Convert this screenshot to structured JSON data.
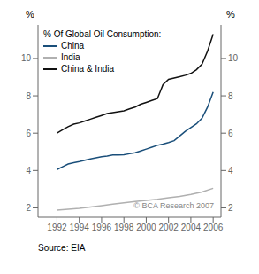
{
  "chart_data": {
    "type": "line",
    "title": "% Of Global Oil Consumption:",
    "y_label": "%",
    "y2_label": "%",
    "annotations": [
      "© BCA Research 2007",
      "Source: EIA"
    ],
    "xlim": [
      1990.3,
      2006.7
    ],
    "xticks": [
      1992,
      1994,
      1996,
      1998,
      2000,
      2002,
      2004,
      2006
    ],
    "ylim": [
      1.5,
      11.8
    ],
    "yticks": [
      2,
      4,
      6,
      8,
      10
    ],
    "y2lim": [
      1.5,
      11.8
    ],
    "y2ticks": [
      2,
      4,
      6,
      8,
      10
    ],
    "grid": false,
    "legend": "upper left",
    "series": [
      {
        "name": "China",
        "color": "#1a4f7a",
        "x": [
          1992,
          1992.5,
          1993,
          1993.5,
          1994,
          1994.5,
          1995,
          1995.5,
          1996,
          1996.5,
          1997,
          1997.5,
          1998,
          1998.5,
          1999,
          1999.5,
          2000,
          2000.5,
          2001,
          2001.5,
          2002,
          2002.5,
          2003,
          2003.5,
          2004,
          2004.5,
          2005,
          2005.5,
          2006
        ],
        "values": [
          4.05,
          4.2,
          4.35,
          4.42,
          4.48,
          4.55,
          4.62,
          4.68,
          4.74,
          4.78,
          4.83,
          4.84,
          4.85,
          4.9,
          4.95,
          5.05,
          5.15,
          5.25,
          5.35,
          5.42,
          5.5,
          5.6,
          5.85,
          6.1,
          6.3,
          6.5,
          6.8,
          7.4,
          8.2
        ]
      },
      {
        "name": "India",
        "color": "#b0b0b0",
        "x": [
          1992,
          1993,
          1994,
          1995,
          1996,
          1997,
          1998,
          1999,
          2000,
          2001,
          2002,
          2003,
          2004,
          2005,
          2006
        ],
        "values": [
          1.88,
          1.93,
          1.98,
          2.05,
          2.12,
          2.2,
          2.27,
          2.34,
          2.4,
          2.46,
          2.54,
          2.62,
          2.72,
          2.85,
          3.05
        ]
      },
      {
        "name": "China & India",
        "color": "#111111",
        "x": [
          1992,
          1992.5,
          1993,
          1993.5,
          1994,
          1994.5,
          1995,
          1995.5,
          1996,
          1996.5,
          1997,
          1997.5,
          1998,
          1998.5,
          1999,
          1999.5,
          2000,
          2000.5,
          2001,
          2001.5,
          2002,
          2002.5,
          2003,
          2003.5,
          2004,
          2004.5,
          2005,
          2005.5,
          2006
        ],
        "values": [
          6.0,
          6.18,
          6.35,
          6.48,
          6.55,
          6.65,
          6.75,
          6.85,
          6.95,
          7.05,
          7.1,
          7.15,
          7.2,
          7.3,
          7.4,
          7.55,
          7.65,
          7.75,
          7.85,
          8.6,
          8.88,
          8.95,
          9.02,
          9.1,
          9.2,
          9.4,
          9.7,
          10.4,
          11.3
        ]
      }
    ]
  }
}
